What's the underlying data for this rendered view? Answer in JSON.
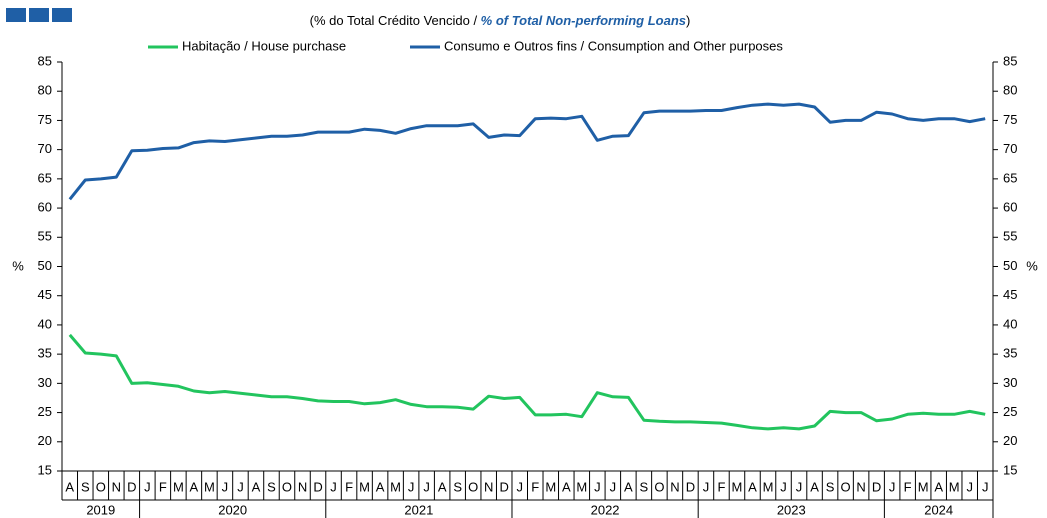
{
  "chart_data": {
    "type": "line",
    "subtitle": [
      "(% do Total  Crédito Vencido / ",
      "% of Total Non-performing Loans",
      ")"
    ],
    "y_label": "%",
    "y2_label": "%",
    "categories": [
      "A",
      "S",
      "O",
      "N",
      "D",
      "J",
      "F",
      "M",
      "A",
      "M",
      "J",
      "J",
      "A",
      "S",
      "O",
      "N",
      "D",
      "J",
      "F",
      "M",
      "A",
      "M",
      "J",
      "J",
      "A",
      "S",
      "O",
      "N",
      "D",
      "J",
      "F",
      "M",
      "A",
      "M",
      "J",
      "J",
      "A",
      "S",
      "O",
      "N",
      "D",
      "J",
      "F",
      "M",
      "A",
      "M",
      "J",
      "J",
      "A",
      "S",
      "O",
      "N",
      "D",
      "J",
      "F",
      "M",
      "A",
      "M",
      "J",
      "J"
    ],
    "x_groups": [
      "2019",
      "2020",
      "2021",
      "2022",
      "2023",
      "2024"
    ],
    "series": [
      {
        "name": "Habitação / House purchase",
        "color": "#22c45e",
        "values": [
          38.3,
          35.2,
          35,
          34.7,
          30,
          30.1,
          29.8,
          29.5,
          28.7,
          28.4,
          28.6,
          28.3,
          28,
          27.7,
          27.7,
          27.4,
          27,
          26.9,
          26.9,
          26.5,
          26.7,
          27.2,
          26.4,
          26,
          26,
          25.9,
          25.6,
          27.8,
          27.4,
          27.6,
          24.6,
          24.6,
          24.7,
          24.3,
          28.4,
          27.7,
          27.6,
          23.7,
          23.5,
          23.4,
          23.4,
          23.3,
          23.2,
          22.8,
          22.4,
          22.2,
          22.4,
          22.2,
          22.7,
          25.2,
          25,
          25,
          23.6,
          23.9,
          24.7,
          24.9,
          24.7,
          24.7,
          25.2,
          24.7
        ]
      },
      {
        "name": "Consumo e Outros fins / Consumption and Other purposes",
        "color": "#1f5fa6",
        "values": [
          61.5,
          64.8,
          65,
          65.3,
          69.8,
          69.9,
          70.2,
          70.3,
          71.2,
          71.5,
          71.4,
          71.7,
          72,
          72.3,
          72.3,
          72.5,
          73,
          73,
          73,
          73.5,
          73.3,
          72.8,
          73.6,
          74.1,
          74.1,
          74.1,
          74.4,
          72.1,
          72.5,
          72.4,
          75.3,
          75.4,
          75.3,
          75.7,
          71.6,
          72.3,
          72.4,
          76.3,
          76.6,
          76.6,
          76.6,
          76.7,
          76.7,
          77.2,
          77.6,
          77.8,
          77.6,
          77.8,
          77.3,
          74.7,
          75,
          75,
          76.4,
          76.1,
          75.3,
          75,
          75.3,
          75.3,
          74.8,
          75.3
        ]
      }
    ],
    "ylim": [
      15,
      85
    ],
    "yticks": [
      15,
      20,
      25,
      30,
      35,
      40,
      45,
      50,
      55,
      60,
      65,
      70,
      75,
      80,
      85
    ],
    "y2lim": [
      15,
      85
    ],
    "y2ticks": [
      15,
      20,
      25,
      30,
      35,
      40,
      45,
      50,
      55,
      60,
      65,
      70,
      75,
      80,
      85
    ],
    "grid": false
  }
}
